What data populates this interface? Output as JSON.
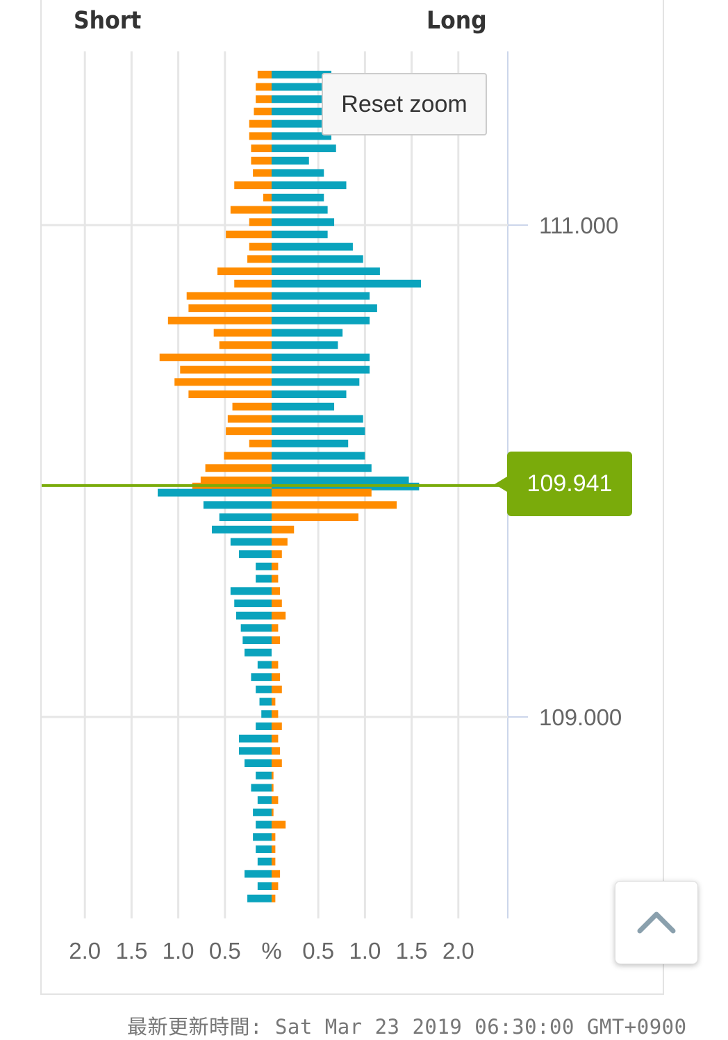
{
  "header": {
    "short_label": "Short",
    "long_label": "Long"
  },
  "reset_zoom_label": "Reset zoom",
  "current_price_label": "109.941",
  "footer_text": "最新更新時間: Sat Mar 23 2019 06:30:00 GMT+0900",
  "colors": {
    "orange": "#ff8c00",
    "teal": "#0aa3bd",
    "price_line": "#7aab0b"
  },
  "icons": {
    "scroll_top": "chevron-up-icon"
  },
  "chart_data": {
    "type": "bar",
    "orientation": "horizontal-butterfly",
    "x_tick_labels": [
      "2.0",
      "1.5",
      "1.0",
      "0.5",
      "%",
      "0.5",
      "1.0",
      "1.5",
      "2.0"
    ],
    "y_tick_labels": [
      "111.000",
      "109.000"
    ],
    "ylim": [
      108.256,
      111.662
    ],
    "xlim_percent": [
      -2.5,
      2.5
    ],
    "current_price": 109.941,
    "series": [
      {
        "name": "Short",
        "side": "left",
        "rows": [
          {
            "price": 111.612,
            "value": 0.15,
            "color": "orange"
          },
          {
            "price": 111.562,
            "value": 0.17,
            "color": "orange"
          },
          {
            "price": 111.512,
            "value": 0.17,
            "color": "orange"
          },
          {
            "price": 111.462,
            "value": 0.19,
            "color": "orange"
          },
          {
            "price": 111.412,
            "value": 0.24,
            "color": "orange"
          },
          {
            "price": 111.362,
            "value": 0.24,
            "color": "orange"
          },
          {
            "price": 111.312,
            "value": 0.22,
            "color": "orange"
          },
          {
            "price": 111.262,
            "value": 0.22,
            "color": "orange"
          },
          {
            "price": 111.212,
            "value": 0.2,
            "color": "orange"
          },
          {
            "price": 111.162,
            "value": 0.4,
            "color": "orange"
          },
          {
            "price": 111.112,
            "value": 0.09,
            "color": "orange"
          },
          {
            "price": 111.062,
            "value": 0.44,
            "color": "orange"
          },
          {
            "price": 111.012,
            "value": 0.24,
            "color": "orange"
          },
          {
            "price": 110.962,
            "value": 0.49,
            "color": "orange"
          },
          {
            "price": 110.912,
            "value": 0.24,
            "color": "orange"
          },
          {
            "price": 110.862,
            "value": 0.26,
            "color": "orange"
          },
          {
            "price": 110.812,
            "value": 0.58,
            "color": "orange"
          },
          {
            "price": 110.762,
            "value": 0.4,
            "color": "orange"
          },
          {
            "price": 110.712,
            "value": 0.91,
            "color": "orange"
          },
          {
            "price": 110.662,
            "value": 0.89,
            "color": "orange"
          },
          {
            "price": 110.612,
            "value": 1.11,
            "color": "orange"
          },
          {
            "price": 110.562,
            "value": 0.62,
            "color": "orange"
          },
          {
            "price": 110.512,
            "value": 0.56,
            "color": "orange"
          },
          {
            "price": 110.462,
            "value": 1.2,
            "color": "orange"
          },
          {
            "price": 110.412,
            "value": 0.98,
            "color": "orange"
          },
          {
            "price": 110.362,
            "value": 1.04,
            "color": "orange"
          },
          {
            "price": 110.312,
            "value": 0.89,
            "color": "orange"
          },
          {
            "price": 110.262,
            "value": 0.42,
            "color": "orange"
          },
          {
            "price": 110.212,
            "value": 0.47,
            "color": "orange"
          },
          {
            "price": 110.162,
            "value": 0.49,
            "color": "orange"
          },
          {
            "price": 110.112,
            "value": 0.24,
            "color": "orange"
          },
          {
            "price": 110.062,
            "value": 0.51,
            "color": "orange"
          },
          {
            "price": 110.012,
            "value": 0.71,
            "color": "orange"
          },
          {
            "price": 109.962,
            "value": 0.76,
            "color": "orange"
          },
          {
            "price": 109.937,
            "value": 0.85,
            "color": "orange"
          },
          {
            "price": 109.912,
            "value": 1.22,
            "color": "teal"
          },
          {
            "price": 109.862,
            "value": 0.73,
            "color": "teal"
          },
          {
            "price": 109.812,
            "value": 0.56,
            "color": "teal"
          },
          {
            "price": 109.762,
            "value": 0.64,
            "color": "teal"
          },
          {
            "price": 109.712,
            "value": 0.44,
            "color": "teal"
          },
          {
            "price": 109.662,
            "value": 0.35,
            "color": "teal"
          },
          {
            "price": 109.612,
            "value": 0.17,
            "color": "teal"
          },
          {
            "price": 109.562,
            "value": 0.17,
            "color": "teal"
          },
          {
            "price": 109.512,
            "value": 0.44,
            "color": "teal"
          },
          {
            "price": 109.462,
            "value": 0.4,
            "color": "teal"
          },
          {
            "price": 109.412,
            "value": 0.38,
            "color": "teal"
          },
          {
            "price": 109.362,
            "value": 0.33,
            "color": "teal"
          },
          {
            "price": 109.312,
            "value": 0.31,
            "color": "teal"
          },
          {
            "price": 109.262,
            "value": 0.29,
            "color": "teal"
          },
          {
            "price": 109.212,
            "value": 0.15,
            "color": "teal"
          },
          {
            "price": 109.162,
            "value": 0.22,
            "color": "teal"
          },
          {
            "price": 109.112,
            "value": 0.17,
            "color": "teal"
          },
          {
            "price": 109.062,
            "value": 0.13,
            "color": "teal"
          },
          {
            "price": 109.012,
            "value": 0.11,
            "color": "teal"
          },
          {
            "price": 108.962,
            "value": 0.17,
            "color": "teal"
          },
          {
            "price": 108.912,
            "value": 0.35,
            "color": "teal"
          },
          {
            "price": 108.862,
            "value": 0.35,
            "color": "teal"
          },
          {
            "price": 108.812,
            "value": 0.29,
            "color": "teal"
          },
          {
            "price": 108.762,
            "value": 0.17,
            "color": "teal"
          },
          {
            "price": 108.712,
            "value": 0.22,
            "color": "teal"
          },
          {
            "price": 108.662,
            "value": 0.15,
            "color": "teal"
          },
          {
            "price": 108.612,
            "value": 0.2,
            "color": "teal"
          },
          {
            "price": 108.562,
            "value": 0.17,
            "color": "teal"
          },
          {
            "price": 108.512,
            "value": 0.2,
            "color": "teal"
          },
          {
            "price": 108.462,
            "value": 0.17,
            "color": "teal"
          },
          {
            "price": 108.412,
            "value": 0.15,
            "color": "teal"
          },
          {
            "price": 108.362,
            "value": 0.29,
            "color": "teal"
          },
          {
            "price": 108.312,
            "value": 0.15,
            "color": "teal"
          },
          {
            "price": 108.262,
            "value": 0.26,
            "color": "teal"
          }
        ]
      },
      {
        "name": "Long",
        "side": "right",
        "rows": [
          {
            "price": 111.612,
            "value": 0.64,
            "color": "teal"
          },
          {
            "price": 111.562,
            "value": 0.77,
            "color": "teal"
          },
          {
            "price": 111.512,
            "value": 0.54,
            "color": "teal"
          },
          {
            "price": 111.462,
            "value": 0.6,
            "color": "teal"
          },
          {
            "price": 111.412,
            "value": 0.64,
            "color": "teal"
          },
          {
            "price": 111.362,
            "value": 0.64,
            "color": "teal"
          },
          {
            "price": 111.312,
            "value": 0.69,
            "color": "teal"
          },
          {
            "price": 111.262,
            "value": 0.4,
            "color": "teal"
          },
          {
            "price": 111.212,
            "value": 0.56,
            "color": "teal"
          },
          {
            "price": 111.162,
            "value": 0.8,
            "color": "teal"
          },
          {
            "price": 111.112,
            "value": 0.56,
            "color": "teal"
          },
          {
            "price": 111.062,
            "value": 0.6,
            "color": "teal"
          },
          {
            "price": 111.012,
            "value": 0.67,
            "color": "teal"
          },
          {
            "price": 110.962,
            "value": 0.6,
            "color": "teal"
          },
          {
            "price": 110.912,
            "value": 0.87,
            "color": "teal"
          },
          {
            "price": 110.862,
            "value": 0.98,
            "color": "teal"
          },
          {
            "price": 110.812,
            "value": 1.16,
            "color": "teal"
          },
          {
            "price": 110.762,
            "value": 1.6,
            "color": "teal"
          },
          {
            "price": 110.712,
            "value": 1.05,
            "color": "teal"
          },
          {
            "price": 110.662,
            "value": 1.13,
            "color": "teal"
          },
          {
            "price": 110.612,
            "value": 1.05,
            "color": "teal"
          },
          {
            "price": 110.562,
            "value": 0.76,
            "color": "teal"
          },
          {
            "price": 110.512,
            "value": 0.71,
            "color": "teal"
          },
          {
            "price": 110.462,
            "value": 1.05,
            "color": "teal"
          },
          {
            "price": 110.412,
            "value": 1.05,
            "color": "teal"
          },
          {
            "price": 110.362,
            "value": 0.94,
            "color": "teal"
          },
          {
            "price": 110.312,
            "value": 0.8,
            "color": "teal"
          },
          {
            "price": 110.262,
            "value": 0.67,
            "color": "teal"
          },
          {
            "price": 110.212,
            "value": 0.98,
            "color": "teal"
          },
          {
            "price": 110.162,
            "value": 1.0,
            "color": "teal"
          },
          {
            "price": 110.112,
            "value": 0.82,
            "color": "teal"
          },
          {
            "price": 110.062,
            "value": 1.0,
            "color": "teal"
          },
          {
            "price": 110.012,
            "value": 1.07,
            "color": "teal"
          },
          {
            "price": 109.962,
            "value": 1.47,
            "color": "teal"
          },
          {
            "price": 109.937,
            "value": 1.58,
            "color": "teal"
          },
          {
            "price": 109.912,
            "value": 1.07,
            "color": "orange"
          },
          {
            "price": 109.862,
            "value": 1.34,
            "color": "orange"
          },
          {
            "price": 109.812,
            "value": 0.93,
            "color": "orange"
          },
          {
            "price": 109.762,
            "value": 0.24,
            "color": "orange"
          },
          {
            "price": 109.712,
            "value": 0.17,
            "color": "orange"
          },
          {
            "price": 109.662,
            "value": 0.11,
            "color": "orange"
          },
          {
            "price": 109.612,
            "value": 0.07,
            "color": "orange"
          },
          {
            "price": 109.562,
            "value": 0.07,
            "color": "orange"
          },
          {
            "price": 109.512,
            "value": 0.09,
            "color": "orange"
          },
          {
            "price": 109.462,
            "value": 0.11,
            "color": "orange"
          },
          {
            "price": 109.412,
            "value": 0.15,
            "color": "orange"
          },
          {
            "price": 109.362,
            "value": 0.07,
            "color": "orange"
          },
          {
            "price": 109.312,
            "value": 0.09,
            "color": "orange"
          },
          {
            "price": 109.262,
            "value": 0.0,
            "color": "orange"
          },
          {
            "price": 109.212,
            "value": 0.07,
            "color": "orange"
          },
          {
            "price": 109.162,
            "value": 0.09,
            "color": "orange"
          },
          {
            "price": 109.112,
            "value": 0.11,
            "color": "orange"
          },
          {
            "price": 109.062,
            "value": 0.04,
            "color": "orange"
          },
          {
            "price": 109.012,
            "value": 0.07,
            "color": "orange"
          },
          {
            "price": 108.962,
            "value": 0.11,
            "color": "orange"
          },
          {
            "price": 108.912,
            "value": 0.07,
            "color": "orange"
          },
          {
            "price": 108.862,
            "value": 0.09,
            "color": "orange"
          },
          {
            "price": 108.812,
            "value": 0.11,
            "color": "orange"
          },
          {
            "price": 108.762,
            "value": 0.02,
            "color": "orange"
          },
          {
            "price": 108.712,
            "value": 0.02,
            "color": "orange"
          },
          {
            "price": 108.662,
            "value": 0.07,
            "color": "orange"
          },
          {
            "price": 108.612,
            "value": 0.02,
            "color": "orange"
          },
          {
            "price": 108.562,
            "value": 0.15,
            "color": "orange"
          },
          {
            "price": 108.512,
            "value": 0.04,
            "color": "orange"
          },
          {
            "price": 108.462,
            "value": 0.04,
            "color": "orange"
          },
          {
            "price": 108.412,
            "value": 0.04,
            "color": "orange"
          },
          {
            "price": 108.362,
            "value": 0.09,
            "color": "orange"
          },
          {
            "price": 108.312,
            "value": 0.07,
            "color": "orange"
          },
          {
            "price": 108.262,
            "value": 0.04,
            "color": "orange"
          }
        ]
      }
    ]
  }
}
